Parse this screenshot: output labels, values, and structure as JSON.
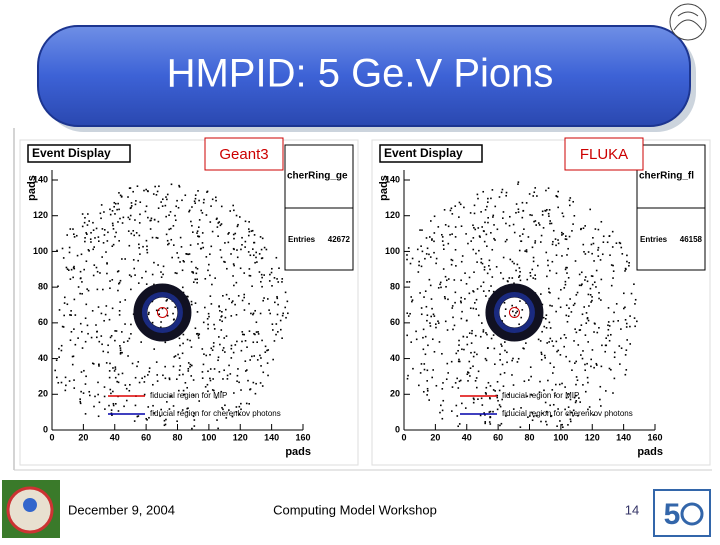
{
  "title": "HMPID: 5 Ge.V Pions",
  "panels": [
    {
      "label": "Geant3",
      "frame_title": "Event Display",
      "y_axis_label": "pads",
      "x_axis_label": "pads",
      "histogram_name": "cherRing_ge",
      "entries_label": "Entries",
      "entries": 42672,
      "legend": [
        "fiducial region for MIP",
        "fiducial region for cherenkov photons"
      ],
      "xticks": [
        0,
        20,
        40,
        60,
        80,
        100,
        120,
        140,
        160
      ],
      "yticks": [
        0,
        20,
        40,
        60,
        80,
        100,
        120,
        140
      ]
    },
    {
      "label": "FLUKA",
      "frame_title": "Event Display",
      "y_axis_label": "pads",
      "x_axis_label": "pads",
      "histogram_name": "cherRing_fl",
      "entries_label": "Entries",
      "entries": 46158,
      "legend": [
        "fiducial region for MIP",
        "fiducial region for cherenkov photons"
      ],
      "xticks": [
        0,
        20,
        40,
        60,
        80,
        100,
        120,
        140,
        160
      ],
      "yticks": [
        0,
        20,
        40,
        60,
        80,
        100,
        120,
        140
      ]
    }
  ],
  "footer": {
    "date": "December 9, 2004",
    "event": "Computing Model Workshop",
    "page": 14
  }
}
